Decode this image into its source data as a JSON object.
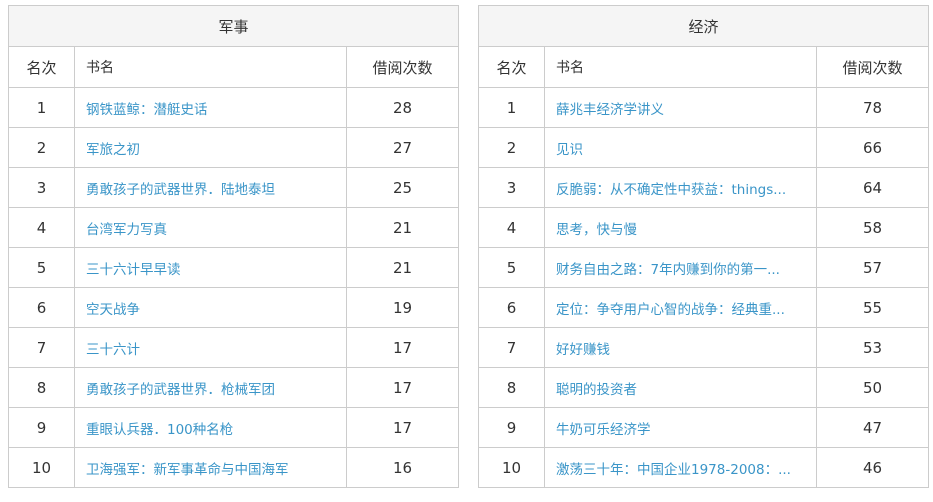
{
  "headers": {
    "rank": "名次",
    "title": "书名",
    "count": "借阅次数"
  },
  "tables": [
    {
      "category": "军事",
      "rows": [
        {
          "rank": "1",
          "title": "钢铁蓝鲸：潜艇史话",
          "count": "28"
        },
        {
          "rank": "2",
          "title": "军旅之初",
          "count": "27"
        },
        {
          "rank": "3",
          "title": "勇敢孩子的武器世界．陆地泰坦",
          "count": "25"
        },
        {
          "rank": "4",
          "title": "台湾军力写真",
          "count": "21"
        },
        {
          "rank": "5",
          "title": "三十六计早早读",
          "count": "21"
        },
        {
          "rank": "6",
          "title": "空天战争",
          "count": "19"
        },
        {
          "rank": "7",
          "title": "三十六计",
          "count": "17"
        },
        {
          "rank": "8",
          "title": "勇敢孩子的武器世界．枪械军团",
          "count": "17"
        },
        {
          "rank": "9",
          "title": "重眼认兵器．100种名枪",
          "count": "17"
        },
        {
          "rank": "10",
          "title": "卫海强军：新军事革命与中国海军",
          "count": "16"
        }
      ]
    },
    {
      "category": "经济",
      "rows": [
        {
          "rank": "1",
          "title": "薛兆丰经济学讲义",
          "count": "78"
        },
        {
          "rank": "2",
          "title": "见识",
          "count": "66"
        },
        {
          "rank": "3",
          "title": "反脆弱：从不确定性中获益：things...",
          "count": "64"
        },
        {
          "rank": "4",
          "title": "思考，快与慢",
          "count": "58"
        },
        {
          "rank": "5",
          "title": "财务自由之路：7年内赚到你的第一...",
          "count": "57"
        },
        {
          "rank": "6",
          "title": "定位：争夺用户心智的战争：经典重...",
          "count": "55"
        },
        {
          "rank": "7",
          "title": "好好赚钱",
          "count": "53"
        },
        {
          "rank": "8",
          "title": "聪明的投资者",
          "count": "50"
        },
        {
          "rank": "9",
          "title": "牛奶可乐经济学",
          "count": "47"
        },
        {
          "rank": "10",
          "title": "激荡三十年：中国企业1978-2008：...",
          "count": "46"
        }
      ]
    }
  ]
}
